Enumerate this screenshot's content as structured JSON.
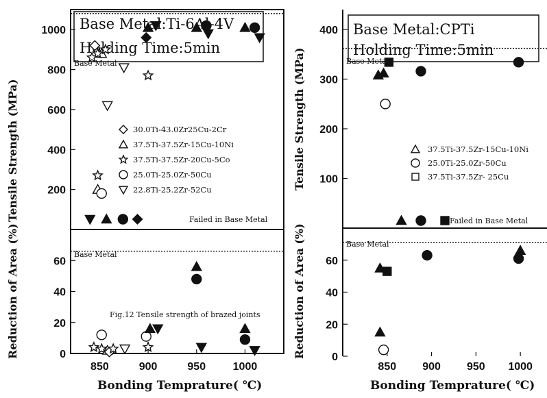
{
  "chart_data": [
    {
      "panel": "left",
      "type": "scatter",
      "title_lines": [
        "Base Metal:Ti-6Al-4V",
        "Holding Time:5min"
      ],
      "upper": {
        "ylabel": "Tensile Strength (MPa)",
        "yticks": [
          200,
          400,
          600,
          800,
          1000
        ],
        "ylim": [
          0,
          1100
        ],
        "ref_label": "Base Metal",
        "ref_value": 1080,
        "failed_label": "Failed in Base Metal"
      },
      "lower": {
        "ylabel": "Reduction of Area (%)",
        "yticks": [
          0,
          20,
          40,
          60
        ],
        "ylim": [
          0,
          80
        ],
        "ref_label": "Base Metal",
        "ref_value": 66,
        "annotation": "Fig.12   Tensile strength of brazed joints"
      },
      "xlabel": "Bonding Temprature( ℃)",
      "xticks": [
        850,
        900,
        950,
        1000
      ],
      "xlim": [
        820,
        1040
      ],
      "legend": [
        {
          "marker": "diamond",
          "label": "30.0Ti-43.0Zr25Cu-2Cr"
        },
        {
          "marker": "triangle",
          "label": "37.5Ti-37.5Zr-15Cu-10Ni"
        },
        {
          "marker": "star",
          "label": "37.5Ti-37.5Zr-20Cu-5Co"
        },
        {
          "marker": "circle",
          "label": "25.0Ti-25.0Zr-50Cu"
        },
        {
          "marker": "triangle-down",
          "label": "22.8Ti-25.2Zr-52Cu"
        }
      ],
      "tensile_points": [
        {
          "series": "diamond",
          "x": 845,
          "y": 920,
          "filled": false
        },
        {
          "series": "triangle",
          "x": 852,
          "y": 880,
          "filled": false
        },
        {
          "series": "star",
          "x": 842,
          "y": 860,
          "filled": false
        },
        {
          "series": "star",
          "x": 848,
          "y": 880,
          "filled": false
        },
        {
          "series": "star",
          "x": 856,
          "y": 900,
          "filled": false
        },
        {
          "series": "triangle-down",
          "x": 875,
          "y": 810,
          "filled": false
        },
        {
          "series": "triangle-down",
          "x": 858,
          "y": 620,
          "filled": false
        },
        {
          "series": "star",
          "x": 900,
          "y": 770,
          "filled": false
        },
        {
          "series": "star",
          "x": 848,
          "y": 270,
          "filled": false
        },
        {
          "series": "triangle",
          "x": 848,
          "y": 200,
          "filled": false
        },
        {
          "series": "circle",
          "x": 852,
          "y": 180,
          "filled": false
        },
        {
          "series": "diamond",
          "x": 898,
          "y": 960,
          "filled": true
        },
        {
          "series": "triangle",
          "x": 900,
          "y": 1010,
          "filled": true
        },
        {
          "series": "triangle-down",
          "x": 908,
          "y": 1020,
          "filled": true
        },
        {
          "series": "triangle",
          "x": 950,
          "y": 1010,
          "filled": true
        },
        {
          "series": "circle",
          "x": 960,
          "y": 1020,
          "filled": true
        },
        {
          "series": "triangle-down",
          "x": 962,
          "y": 980,
          "filled": true
        },
        {
          "series": "triangle",
          "x": 1000,
          "y": 1010,
          "filled": true
        },
        {
          "series": "circle",
          "x": 1010,
          "y": 1010,
          "filled": true
        },
        {
          "series": "triangle-down",
          "x": 1015,
          "y": 960,
          "filled": true
        }
      ],
      "failed_row": [
        {
          "series": "triangle-down",
          "x": 840,
          "filled": true
        },
        {
          "series": "triangle",
          "x": 857,
          "filled": true
        },
        {
          "series": "circle",
          "x": 874,
          "filled": true
        },
        {
          "series": "diamond",
          "x": 889,
          "filled": true
        }
      ],
      "area_points": [
        {
          "series": "circle",
          "x": 852,
          "y": 12,
          "filled": false
        },
        {
          "series": "star",
          "x": 844,
          "y": 4,
          "filled": false
        },
        {
          "series": "star",
          "x": 852,
          "y": 3,
          "filled": false
        },
        {
          "series": "triangle",
          "x": 858,
          "y": 2,
          "filled": false
        },
        {
          "series": "diamond",
          "x": 860,
          "y": 1,
          "filled": false
        },
        {
          "series": "star",
          "x": 864,
          "y": 3,
          "filled": false
        },
        {
          "series": "triangle-down",
          "x": 876,
          "y": 3,
          "filled": false
        },
        {
          "series": "circle",
          "x": 898,
          "y": 11,
          "filled": false
        },
        {
          "series": "star",
          "x": 900,
          "y": 4,
          "filled": false
        },
        {
          "series": "triangle",
          "x": 902,
          "y": 16,
          "filled": true
        },
        {
          "series": "triangle-down",
          "x": 910,
          "y": 16,
          "filled": true
        },
        {
          "series": "triangle",
          "x": 950,
          "y": 56,
          "filled": true
        },
        {
          "series": "circle",
          "x": 950,
          "y": 48,
          "filled": true
        },
        {
          "series": "triangle-down",
          "x": 955,
          "y": 4,
          "filled": true
        },
        {
          "series": "triangle",
          "x": 1000,
          "y": 16,
          "filled": true
        },
        {
          "series": "circle",
          "x": 1000,
          "y": 9,
          "filled": true
        },
        {
          "series": "triangle-down",
          "x": 1010,
          "y": 2,
          "filled": true
        }
      ]
    },
    {
      "panel": "right",
      "type": "scatter",
      "title_lines": [
        "Base Metal:CPTi",
        "Holding Time:5min"
      ],
      "upper": {
        "ylabel": "Tensile Strength (MPa)",
        "yticks": [
          100,
          200,
          300,
          400
        ],
        "ylim": [
          0,
          440
        ],
        "ref_label": "Base Metal",
        "ref_value": 362,
        "failed_label": "Failed in Base Metal"
      },
      "lower": {
        "ylabel": "Reduction of Area (%)",
        "yticks": [
          0,
          20,
          40,
          60
        ],
        "ylim": [
          0,
          80
        ],
        "ref_label": "Base Metal",
        "ref_value": 71
      },
      "xlabel": "Bonding Temprature( ℃)",
      "xticks": [
        850,
        900,
        950,
        1000
      ],
      "xlim": [
        800,
        1030
      ],
      "legend": [
        {
          "marker": "triangle",
          "label": "37.5Ti-37.5Zr-15Cu-10Ni"
        },
        {
          "marker": "circle",
          "label": "25.0Ti-25.0Zr-50Cu"
        },
        {
          "marker": "square",
          "label": "37.5Ti-37.5Zr- 25Cu"
        }
      ],
      "tensile_points": [
        {
          "series": "triangle",
          "x": 840,
          "y": 308,
          "filled": true
        },
        {
          "series": "triangle",
          "x": 846,
          "y": 312,
          "filled": true
        },
        {
          "series": "square",
          "x": 852,
          "y": 334,
          "filled": true
        },
        {
          "series": "circle",
          "x": 848,
          "y": 250,
          "filled": false
        },
        {
          "series": "circle",
          "x": 888,
          "y": 316,
          "filled": true
        },
        {
          "series": "circle",
          "x": 998,
          "y": 334,
          "filled": true
        }
      ],
      "failed_row": [
        {
          "series": "triangle",
          "x": 866,
          "filled": true
        },
        {
          "series": "circle",
          "x": 888,
          "filled": true
        },
        {
          "series": "square",
          "x": 915,
          "filled": true
        }
      ],
      "area_points": [
        {
          "series": "triangle",
          "x": 842,
          "y": 55,
          "filled": true
        },
        {
          "series": "square",
          "x": 850,
          "y": 53,
          "filled": true
        },
        {
          "series": "triangle",
          "x": 842,
          "y": 15,
          "filled": true
        },
        {
          "series": "circle",
          "x": 846,
          "y": 4,
          "filled": false
        },
        {
          "series": "circle",
          "x": 895,
          "y": 63,
          "filled": true
        },
        {
          "series": "triangle",
          "x": 1000,
          "y": 66,
          "filled": true
        },
        {
          "series": "circle",
          "x": 998,
          "y": 61,
          "filled": true
        }
      ]
    }
  ]
}
